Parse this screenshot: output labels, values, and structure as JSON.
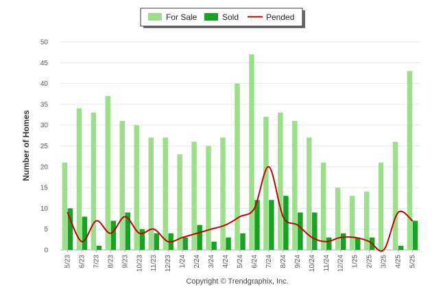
{
  "colors": {
    "for_sale": "#9dde8a",
    "sold": "#16a324",
    "pended": "#c00000",
    "grid": "#e6e6e6",
    "axis": "#aaaaaa"
  },
  "legend": {
    "items": [
      "For Sale",
      "Sold",
      "Pended"
    ],
    "placement": "top-center"
  },
  "copyright": "Copyright © Trendgraphix, Inc.",
  "chart_data": {
    "type": "bar",
    "title": "",
    "xlabel": "",
    "ylabel": "Number of Homes",
    "ylim": [
      0,
      50
    ],
    "yticks": [
      0,
      5,
      10,
      15,
      20,
      25,
      30,
      35,
      40,
      45,
      50
    ],
    "grid": true,
    "categories": [
      "5/23",
      "6/23",
      "7/23",
      "8/23",
      "9/23",
      "10/23",
      "11/23",
      "12/23",
      "1/24",
      "2/24",
      "3/24",
      "4/24",
      "5/24",
      "6/24",
      "7/24",
      "8/24",
      "9/24",
      "10/24",
      "11/24",
      "12/24",
      "1/25",
      "2/25",
      "3/25",
      "4/25",
      "5/25"
    ],
    "series": [
      {
        "name": "For Sale",
        "type": "bar",
        "values": [
          21,
          34,
          33,
          37,
          31,
          30,
          27,
          27,
          23,
          26,
          25,
          27,
          40,
          47,
          32,
          33,
          31,
          27,
          21,
          15,
          13,
          14,
          21,
          26,
          43
        ]
      },
      {
        "name": "Sold",
        "type": "bar",
        "values": [
          10,
          8,
          1,
          7,
          9,
          5,
          4,
          4,
          3,
          6,
          2,
          3,
          4,
          12,
          12,
          13,
          9,
          9,
          3,
          4,
          3,
          3,
          0,
          1,
          7
        ]
      },
      {
        "name": "Pended",
        "type": "line",
        "values": [
          9,
          2,
          7,
          4,
          8,
          4,
          5,
          2,
          3,
          4,
          5,
          6,
          8,
          10,
          20,
          8,
          6,
          3,
          2,
          3,
          3,
          2,
          0,
          9,
          7
        ]
      }
    ]
  }
}
